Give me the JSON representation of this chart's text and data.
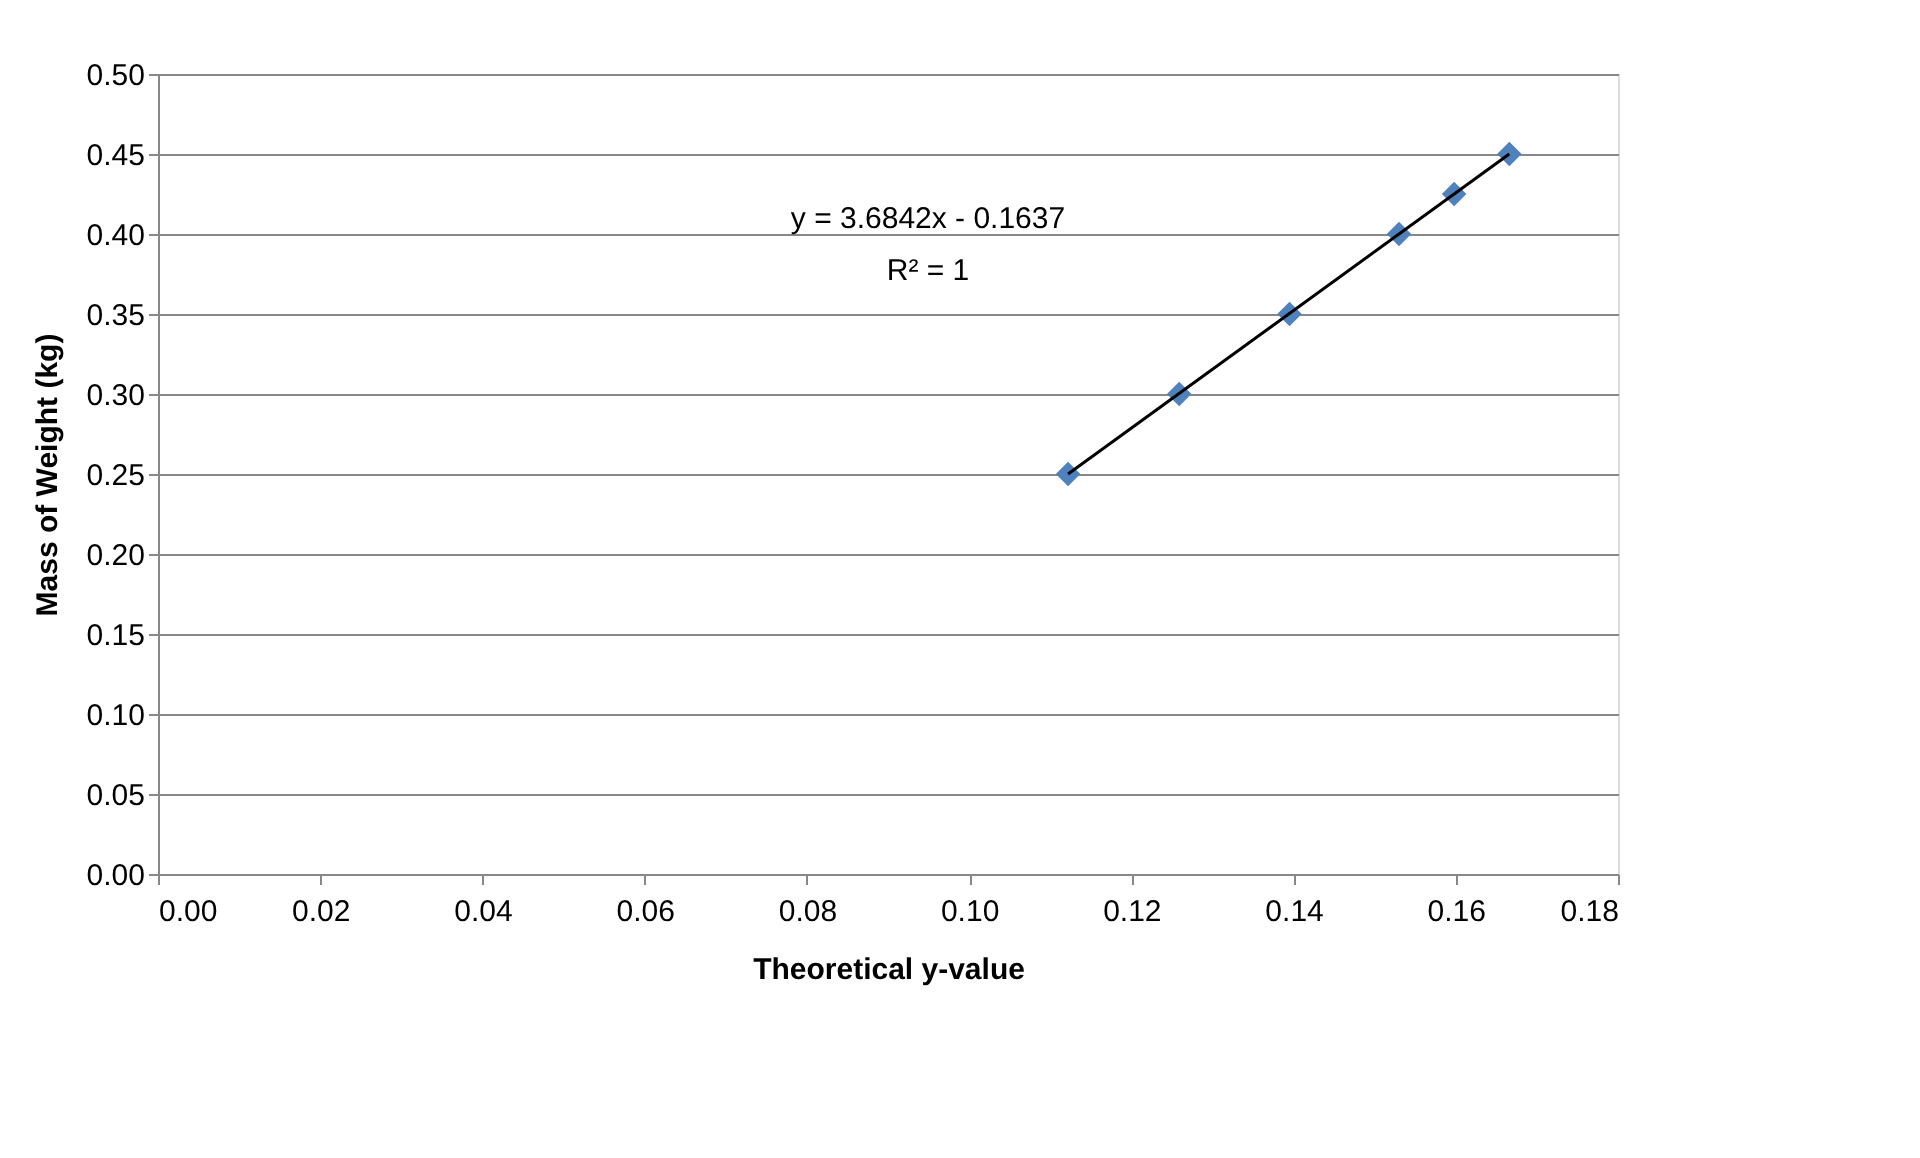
{
  "chart_data": {
    "type": "scatter",
    "xlabel": "Theoretical y-value",
    "ylabel": "Mass of Weight (kg)",
    "x": [
      0.1122,
      0.1259,
      0.1395,
      0.153,
      0.1598,
      0.1666
    ],
    "series": [
      {
        "color": "#4f81bd",
        "values": [
          0.25,
          0.3,
          0.35,
          0.4,
          0.425,
          0.45
        ],
        "marker": "diamond"
      },
      {
        "type": "line",
        "color": "#000000",
        "x": [
          0.1122,
          0.1666
        ],
        "values": [
          0.25,
          0.45
        ],
        "marker": "none",
        "line_style": "solid"
      }
    ],
    "xlim": [
      0,
      0.18
    ],
    "xticks": [
      {
        "value": 0,
        "label": "0.00"
      },
      {
        "value": 0.02,
        "label": "0.02"
      },
      {
        "value": 0.04,
        "label": "0.04"
      },
      {
        "value": 0.06,
        "label": "0.06"
      },
      {
        "value": 0.08,
        "label": "0.08"
      },
      {
        "value": 0.1,
        "label": "0.10"
      },
      {
        "value": 0.12,
        "label": "0.12"
      },
      {
        "value": 0.14,
        "label": "0.14"
      },
      {
        "value": 0.16,
        "label": "0.16"
      },
      {
        "value": 0.18,
        "label": "0.18"
      }
    ],
    "ylim": [
      0,
      0.5
    ],
    "yticks": [
      {
        "value": 0,
        "label": "0.00"
      },
      {
        "value": 0.05,
        "label": "0.05"
      },
      {
        "value": 0.1,
        "label": "0.10"
      },
      {
        "value": 0.15,
        "label": "0.15"
      },
      {
        "value": 0.2,
        "label": "0.20"
      },
      {
        "value": 0.25,
        "label": "0.25"
      },
      {
        "value": 0.3,
        "label": "0.30"
      },
      {
        "value": 0.35,
        "label": "0.35"
      },
      {
        "value": 0.4,
        "label": "0.40"
      },
      {
        "value": 0.45,
        "label": "0.45"
      },
      {
        "value": 0.5,
        "label": "0.50"
      }
    ],
    "grid": "y",
    "legend": false,
    "annotations": [
      "y = 3.6842x - 0.1637",
      "R² = 1"
    ]
  }
}
